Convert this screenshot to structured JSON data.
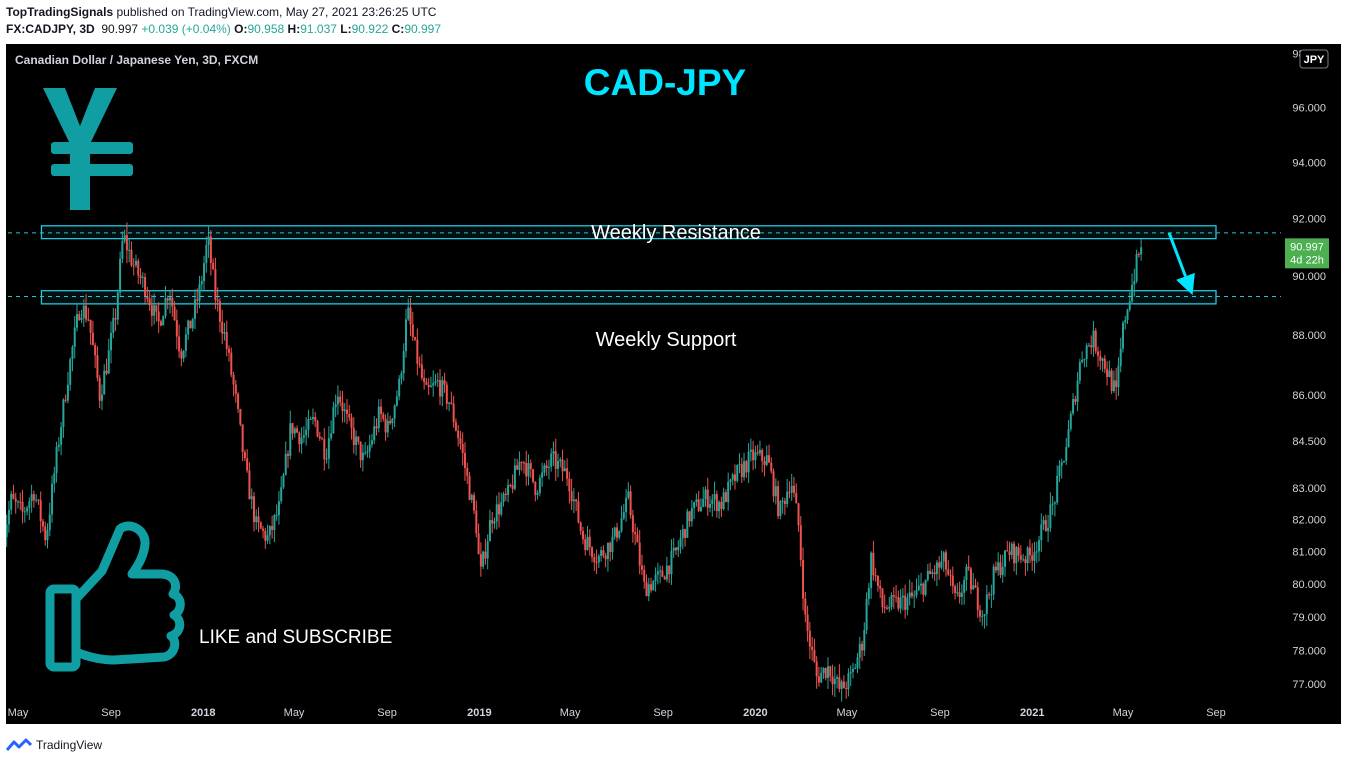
{
  "header": {
    "publisher": "TopTradingSignals",
    "published_text": "published on TradingView.com, May 27, 2021 23:26:25 UTC",
    "symbol": "FX:CADJPY, 3D",
    "last": "90.997",
    "change": "+0.039 (+0.04%)",
    "o_label": "O:",
    "o": "90.958",
    "h_label": "H:",
    "h": "91.037",
    "l_label": "L:",
    "l": "90.922",
    "c_label": "C:",
    "c": "90.997"
  },
  "chart_data": {
    "type": "candlestick",
    "instrument_label": "Canadian Dollar / Japanese Yen, 3D, FXCM",
    "title": "CAD-JPY",
    "currency_badge": "JPY",
    "y_ticks": [
      "98.000",
      "96.000",
      "94.000",
      "92.000",
      "90.000",
      "88.000",
      "86.000",
      "84.500",
      "83.000",
      "82.000",
      "81.000",
      "80.000",
      "79.000",
      "78.000",
      "77.000"
    ],
    "y_scale": "log",
    "ylim": [
      76.6,
      99.0
    ],
    "x_ticks": [
      "May",
      "Sep",
      "2018",
      "May",
      "Sep",
      "2019",
      "May",
      "Sep",
      "2020",
      "May",
      "Sep",
      "2021",
      "May",
      "Sep"
    ],
    "x_tick_dates": [
      "2017-05",
      "2017-09",
      "2018-01",
      "2018-05",
      "2018-09",
      "2019-01",
      "2019-05",
      "2019-09",
      "2020-01",
      "2020-05",
      "2020-09",
      "2021-01",
      "2021-05",
      "2021-09"
    ],
    "price_badge": {
      "price": "90.997",
      "countdown": "4d 22h"
    },
    "zones": [
      {
        "name": "Weekly Resistance",
        "from_date": "2017-06",
        "to_date": "2021-09",
        "low": 91.3,
        "high": 91.75
      },
      {
        "name": "Weekly Support",
        "from_date": "2017-06",
        "to_date": "2021-09",
        "low": 89.05,
        "high": 89.5
      }
    ],
    "dashed_levels": [
      91.5,
      89.3
    ],
    "arrow": {
      "from": [
        "2021-07",
        91.5
      ],
      "to": [
        "2021-08",
        89.35
      ]
    },
    "series_path": [
      [
        "2017-04-10",
        81.0
      ],
      [
        "2017-04-25",
        82.6
      ],
      [
        "2017-05-10",
        82.2
      ],
      [
        "2017-05-25",
        82.9
      ],
      [
        "2017-06-10",
        81.4
      ],
      [
        "2017-06-25",
        84.2
      ],
      [
        "2017-07-10",
        86.8
      ],
      [
        "2017-07-25",
        89.0
      ],
      [
        "2017-08-05",
        88.6
      ],
      [
        "2017-08-20",
        86.0
      ],
      [
        "2017-08-31",
        87.2
      ],
      [
        "2017-09-10",
        88.7
      ],
      [
        "2017-09-20",
        91.4
      ],
      [
        "2017-10-05",
        90.3
      ],
      [
        "2017-10-20",
        89.6
      ],
      [
        "2017-11-05",
        88.3
      ],
      [
        "2017-11-20",
        89.6
      ],
      [
        "2017-12-05",
        87.4
      ],
      [
        "2017-12-20",
        88.5
      ],
      [
        "2017-12-31",
        89.6
      ],
      [
        "2018-01-10",
        91.3
      ],
      [
        "2018-01-20",
        89.3
      ],
      [
        "2018-02-01",
        88.0
      ],
      [
        "2018-02-15",
        86.0
      ],
      [
        "2018-03-01",
        83.5
      ],
      [
        "2018-03-15",
        81.8
      ],
      [
        "2018-03-31",
        81.4
      ],
      [
        "2018-04-15",
        82.4
      ],
      [
        "2018-04-30",
        85.0
      ],
      [
        "2018-05-15",
        84.6
      ],
      [
        "2018-05-31",
        85.2
      ],
      [
        "2018-06-15",
        84.1
      ],
      [
        "2018-06-30",
        86.2
      ],
      [
        "2018-07-15",
        85.0
      ],
      [
        "2018-08-05",
        83.8
      ],
      [
        "2018-08-25",
        85.4
      ],
      [
        "2018-09-05",
        84.9
      ],
      [
        "2018-09-20",
        86.3
      ],
      [
        "2018-10-01",
        88.8
      ],
      [
        "2018-10-10",
        87.6
      ],
      [
        "2018-10-25",
        86.0
      ],
      [
        "2018-11-10",
        86.4
      ],
      [
        "2018-11-25",
        85.8
      ],
      [
        "2018-12-10",
        84.4
      ],
      [
        "2018-12-31",
        81.8
      ],
      [
        "2019-01-05",
        80.2
      ],
      [
        "2019-01-20",
        82.1
      ],
      [
        "2019-02-10",
        82.7
      ],
      [
        "2019-03-01",
        84.0
      ],
      [
        "2019-03-20",
        83.0
      ],
      [
        "2019-04-10",
        83.9
      ],
      [
        "2019-05-01",
        83.4
      ],
      [
        "2019-05-20",
        81.5
      ],
      [
        "2019-06-10",
        80.8
      ],
      [
        "2019-07-01",
        81.4
      ],
      [
        "2019-07-20",
        82.6
      ],
      [
        "2019-08-10",
        79.9
      ],
      [
        "2019-08-31",
        80.2
      ],
      [
        "2019-09-20",
        80.9
      ],
      [
        "2019-10-10",
        82.2
      ],
      [
        "2019-10-31",
        82.7
      ],
      [
        "2019-11-20",
        82.5
      ],
      [
        "2019-12-10",
        83.4
      ],
      [
        "2019-12-31",
        84.0
      ],
      [
        "2020-01-20",
        83.9
      ],
      [
        "2020-02-05",
        82.2
      ],
      [
        "2020-02-20",
        83.3
      ],
      [
        "2020-03-01",
        81.8
      ],
      [
        "2020-03-10",
        78.9
      ],
      [
        "2020-03-25",
        77.2
      ],
      [
        "2020-04-10",
        77.5
      ],
      [
        "2020-04-25",
        76.8
      ],
      [
        "2020-05-10",
        77.2
      ],
      [
        "2020-05-25",
        78.3
      ],
      [
        "2020-06-05",
        80.8
      ],
      [
        "2020-06-20",
        79.3
      ],
      [
        "2020-07-10",
        79.4
      ],
      [
        "2020-08-01",
        79.6
      ],
      [
        "2020-08-20",
        80.2
      ],
      [
        "2020-09-10",
        80.7
      ],
      [
        "2020-09-25",
        79.4
      ],
      [
        "2020-10-10",
        80.3
      ],
      [
        "2020-10-31",
        79.1
      ],
      [
        "2020-11-15",
        80.3
      ],
      [
        "2020-12-05",
        81.0
      ],
      [
        "2020-12-31",
        80.8
      ],
      [
        "2021-01-15",
        81.5
      ],
      [
        "2021-01-31",
        82.4
      ],
      [
        "2021-02-20",
        84.6
      ],
      [
        "2021-03-10",
        87.3
      ],
      [
        "2021-03-25",
        87.9
      ],
      [
        "2021-04-10",
        87.0
      ],
      [
        "2021-04-25",
        86.0
      ],
      [
        "2021-05-05",
        88.4
      ],
      [
        "2021-05-15",
        89.6
      ],
      [
        "2021-05-27",
        91.0
      ]
    ],
    "annotations": [
      "Weekly Resistance",
      "Weekly Support",
      "LIKE and SUBSCRIBE"
    ]
  },
  "footer": {
    "brand": "TradingView"
  },
  "colors": {
    "up": "#26a69a",
    "down": "#ef5350",
    "accent": "#00e5ff",
    "zone": "#26c6da",
    "icon": "#119ea3",
    "price_badge": "#4caf50"
  }
}
